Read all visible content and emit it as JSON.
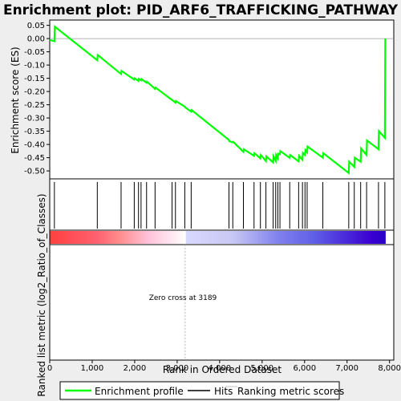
{
  "chart_data": {
    "type": "line",
    "title": "Enrichment plot: PID_ARF6_TRAFFICKING_PATHWAY",
    "xlabel": "Rank in Ordered Dataset",
    "ylabel_top": "Enrichment score (ES)",
    "ylabel_bottom": "Ranked list metric (log2_Ratio_of_Classes)",
    "annotation": "Zero cross at 3189",
    "zero_cross": 3189,
    "xlim": [
      0,
      8100
    ],
    "ylim": [
      -0.53,
      0.07
    ],
    "x_ticks": [
      0,
      1000,
      2000,
      3000,
      4000,
      5000,
      6000,
      7000,
      8000
    ],
    "x_tick_labels": [
      "0",
      "1,000",
      "2,000",
      "3,000",
      "4,000",
      "5,000",
      "6,000",
      "7,000",
      "8,000"
    ],
    "y_ticks": [
      0.05,
      0.0,
      -0.05,
      -0.1,
      -0.15,
      -0.2,
      -0.25,
      -0.3,
      -0.35,
      -0.4,
      -0.45,
      -0.5
    ],
    "y_tick_labels": [
      "0.05",
      "0.00",
      "-0.05",
      "-0.10",
      "-0.15",
      "-0.20",
      "-0.25",
      "-0.30",
      "-0.35",
      "-0.40",
      "-0.45",
      "-0.50"
    ],
    "grid": false,
    "series": [
      {
        "name": "Enrichment profile",
        "color": "#00ff00",
        "x": [
          0,
          110,
          120,
          1120,
          1130,
          1680,
          1690,
          1990,
          2000,
          2090,
          2100,
          2150,
          2160,
          2280,
          2290,
          2480,
          2490,
          2880,
          2890,
          2960,
          2970,
          3180,
          3190,
          3330,
          3340,
          4220,
          4230,
          4310,
          4320,
          4560,
          4570,
          4810,
          4820,
          4960,
          4970,
          5090,
          5100,
          5260,
          5270,
          5320,
          5330,
          5370,
          5380,
          5420,
          5430,
          5650,
          5660,
          5860,
          5870,
          5950,
          5960,
          6010,
          6020,
          6060,
          6070,
          6430,
          6440,
          7040,
          7050,
          7170,
          7180,
          7320,
          7330,
          7460,
          7470,
          7740,
          7750,
          7890,
          7900
        ],
        "y": [
          -0.005,
          -0.01,
          0.045,
          -0.082,
          -0.062,
          -0.134,
          -0.122,
          -0.155,
          -0.15,
          -0.16,
          -0.152,
          -0.158,
          -0.153,
          -0.167,
          -0.163,
          -0.19,
          -0.185,
          -0.232,
          -0.233,
          -0.242,
          -0.236,
          -0.257,
          -0.26,
          -0.276,
          -0.27,
          -0.383,
          -0.388,
          -0.392,
          -0.39,
          -0.428,
          -0.418,
          -0.443,
          -0.433,
          -0.453,
          -0.44,
          -0.463,
          -0.445,
          -0.468,
          -0.445,
          -0.462,
          -0.44,
          -0.453,
          -0.435,
          -0.437,
          -0.425,
          -0.451,
          -0.44,
          -0.464,
          -0.443,
          -0.458,
          -0.432,
          -0.44,
          -0.422,
          -0.43,
          -0.408,
          -0.45,
          -0.433,
          -0.508,
          -0.465,
          -0.485,
          -0.45,
          -0.465,
          -0.415,
          -0.44,
          -0.385,
          -0.418,
          -0.35,
          -0.375,
          0.0
        ]
      }
    ],
    "hits": [
      110,
      1120,
      1680,
      1990,
      2090,
      2150,
      2280,
      2480,
      2880,
      2960,
      3180,
      3330,
      4220,
      4310,
      4560,
      4810,
      4960,
      5090,
      5260,
      5320,
      5370,
      5420,
      5650,
      5860,
      5950,
      6010,
      6060,
      6430,
      7040,
      7170,
      7320,
      7460,
      7740,
      7890
    ],
    "heatmap_scale": {
      "total": 7900,
      "stops": [
        {
          "rank": 0,
          "color": "#ff4040"
        },
        {
          "rank": 1100,
          "color": "#ff6070"
        },
        {
          "rank": 1600,
          "color": "#ff8a8a"
        },
        {
          "rank": 2300,
          "color": "#ffc0d8"
        },
        {
          "rank": 3189,
          "color": "#ffffff"
        },
        {
          "rank": 3200,
          "color": "#d8d8ff"
        },
        {
          "rank": 4300,
          "color": "#c8c8f4"
        },
        {
          "rank": 5380,
          "color": "#8080ee"
        },
        {
          "rank": 6200,
          "color": "#6060e8"
        },
        {
          "rank": 7550,
          "color": "#3a00d0"
        },
        {
          "rank": 7900,
          "color": "#2a00c8"
        }
      ]
    }
  },
  "legend": {
    "items": [
      {
        "label": "Enrichment profile",
        "color": "#00ff00"
      },
      {
        "label": "Hits",
        "color": "#000000"
      },
      {
        "label": "Ranking metric scores",
        "color": "#c0c0c0"
      }
    ]
  }
}
